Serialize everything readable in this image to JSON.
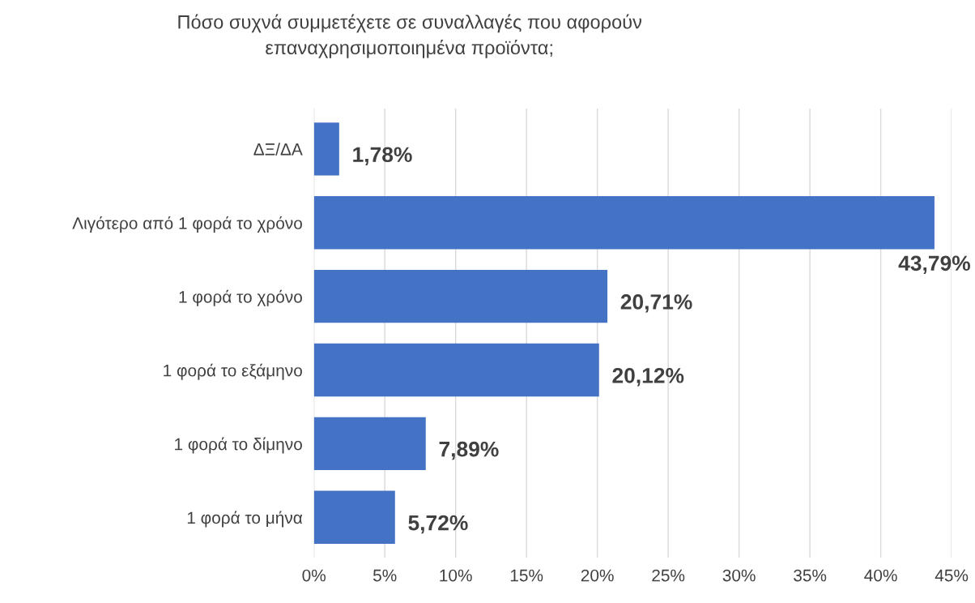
{
  "chart_data": {
    "type": "bar",
    "orientation": "horizontal",
    "title": "Πόσο συχνά συμμετέχετε σε συναλλαγές που αφορούν\nεπαναχρησιμοποιημένα προϊόντα;",
    "categories": [
      "ΔΞ/ΔΑ",
      "Λιγότερο από 1 φορά το χρόνο",
      "1 φορά το χρόνο",
      "1 φορά το εξάμηνο",
      "1 φορά το δίμηνο",
      "1 φορά το μήνα"
    ],
    "values": [
      1.78,
      43.79,
      20.71,
      20.12,
      7.89,
      5.72
    ],
    "value_labels": [
      "1,78%",
      "43,79%",
      "20,71%",
      "20,12%",
      "7,89%",
      "5,72%"
    ],
    "color": "#4472c4",
    "xlim": [
      0,
      45
    ],
    "xticks": [
      {
        "value": 0,
        "label": "0%"
      },
      {
        "value": 5,
        "label": "5%"
      },
      {
        "value": 10,
        "label": "10%"
      },
      {
        "value": 15,
        "label": "15%"
      },
      {
        "value": 20,
        "label": "20%"
      },
      {
        "value": 25,
        "label": "25%"
      },
      {
        "value": 30,
        "label": "30%"
      },
      {
        "value": 35,
        "label": "35%"
      },
      {
        "value": 40,
        "label": "40%"
      },
      {
        "value": 45,
        "label": "45%"
      }
    ],
    "grid": "x",
    "legend": false
  }
}
